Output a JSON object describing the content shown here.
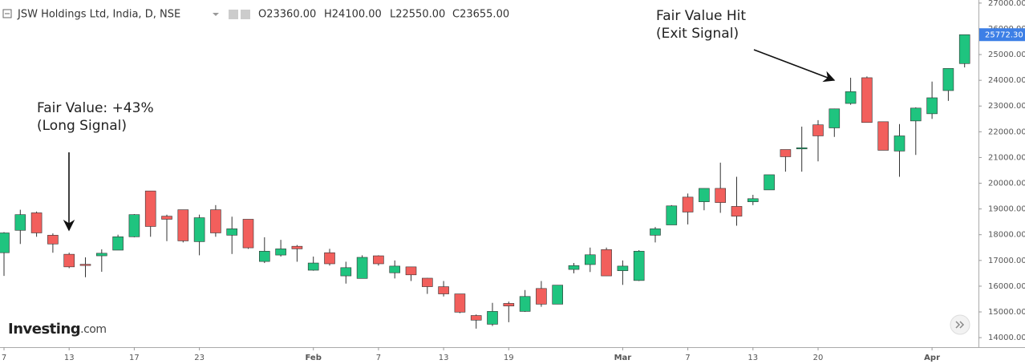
{
  "chart_data": {
    "type": "candlestick",
    "title": "JSW Holdings Ltd, India, D, NSE",
    "legend_ohlc": [
      "O23360.00",
      "H24100.00",
      "L22550.00",
      "C23655.00"
    ],
    "annotations": [
      {
        "lines": [
          "Fair Value: +43%",
          "(Long Signal)"
        ]
      },
      {
        "lines": [
          "Fair Value Hit",
          "(Exit Signal)"
        ]
      }
    ],
    "logo": "Investing",
    "logo_suffix": ".com",
    "categories": [
      "7",
      null,
      null,
      null,
      "13",
      null,
      null,
      null,
      "17",
      null,
      null,
      null,
      "23",
      null,
      null,
      null,
      null,
      null,
      null,
      "Feb",
      null,
      null,
      null,
      "7",
      null,
      null,
      null,
      "13",
      null,
      null,
      null,
      "19",
      null,
      null,
      null,
      null,
      null,
      null,
      "Mar",
      null,
      null,
      null,
      "7",
      null,
      null,
      null,
      "13",
      null,
      null,
      null,
      "20",
      null,
      null,
      null,
      null,
      null,
      null,
      "Apr",
      null,
      null
    ],
    "series": [
      {
        "name": "JSW Holdings Ltd",
        "up_color": "#1fc47f",
        "down_color": "#f25f5c",
        "open": [
          17300,
          18170,
          18850,
          17980,
          17240,
          16850,
          17180,
          17400,
          17920,
          19700,
          18720,
          18970,
          17730,
          18970,
          17980,
          18600,
          16960,
          17210,
          17550,
          16620,
          17300,
          16400,
          16300,
          17180,
          16520,
          16750,
          16310,
          15980,
          15700,
          14860,
          14520,
          15330,
          15020,
          15910,
          15300,
          16650,
          16840,
          17420,
          16600,
          16220,
          17980,
          18380,
          19460,
          19280,
          19800,
          19100,
          19280,
          19740,
          21310,
          21350,
          22270,
          22150,
          23100,
          24100,
          22390,
          21250,
          22420,
          22700,
          23600,
          24650
        ],
        "high": [
          18100,
          18970,
          18900,
          18050,
          17300,
          17120,
          17430,
          18000,
          18800,
          19700,
          18780,
          18970,
          18780,
          19150,
          18700,
          18600,
          17900,
          17800,
          17600,
          17150,
          17450,
          16950,
          17200,
          17200,
          17000,
          16750,
          16320,
          16200,
          15700,
          14900,
          15350,
          15400,
          15850,
          16200,
          16040,
          16900,
          17500,
          17500,
          17000,
          17400,
          18300,
          19150,
          19600,
          19800,
          20800,
          20250,
          19550,
          20330,
          21310,
          22200,
          22450,
          22900,
          24100,
          24150,
          22400,
          22300,
          22950,
          23950,
          24460,
          25772.3
        ],
        "low": [
          16400,
          17640,
          17920,
          17300,
          16700,
          16350,
          16560,
          17400,
          17900,
          17920,
          17750,
          17700,
          17200,
          17920,
          17250,
          17450,
          16900,
          17150,
          16950,
          16600,
          16800,
          16100,
          16300,
          16800,
          16300,
          16200,
          15700,
          15600,
          14950,
          14350,
          14450,
          14600,
          15000,
          15200,
          15300,
          16500,
          16550,
          16400,
          16050,
          16200,
          17700,
          18380,
          18400,
          18950,
          18850,
          18350,
          19150,
          19740,
          20450,
          20450,
          20850,
          21800,
          23050,
          22360,
          21280,
          20250,
          21100,
          22500,
          23200,
          24500
        ],
        "close": [
          18070,
          18780,
          18070,
          17640,
          16750,
          16820,
          17280,
          17920,
          18780,
          18320,
          18600,
          17760,
          18660,
          18070,
          18230,
          17490,
          17360,
          17450,
          17450,
          16900,
          16870,
          16720,
          17120,
          16870,
          16780,
          16440,
          15980,
          15700,
          14990,
          14680,
          15020,
          15230,
          15600,
          15300,
          16040,
          16800,
          17220,
          16400,
          16780,
          17360,
          18230,
          19120,
          18880,
          19800,
          19250,
          18720,
          19400,
          20330,
          21030,
          21380,
          21840,
          22890,
          23560,
          22360,
          21280,
          21840,
          22920,
          23320,
          24460,
          25772.3
        ]
      }
    ],
    "last_price": {
      "value": 25772.3,
      "label": "25772.30"
    },
    "last_price_color": "#3d7fe6",
    "ylim": [
      13630,
      27120
    ],
    "yticks": [
      {
        "value": 14000,
        "label": "14000.00"
      },
      {
        "value": 15000,
        "label": "15000.00"
      },
      {
        "value": 16000,
        "label": "16000.00"
      },
      {
        "value": 17000,
        "label": "17000.00"
      },
      {
        "value": 18000,
        "label": "18000.00"
      },
      {
        "value": 19000,
        "label": "19000.00"
      },
      {
        "value": 20000,
        "label": "20000.00"
      },
      {
        "value": 21000,
        "label": "21000.00"
      },
      {
        "value": 22000,
        "label": "22000.00"
      },
      {
        "value": 23000,
        "label": "23000.00"
      },
      {
        "value": 24000,
        "label": "24000.00"
      },
      {
        "value": 25000,
        "label": "25000.00"
      },
      {
        "value": 26000,
        "label": "26000.00"
      },
      {
        "value": 27000,
        "label": "27000.00"
      }
    ],
    "grid": false
  }
}
